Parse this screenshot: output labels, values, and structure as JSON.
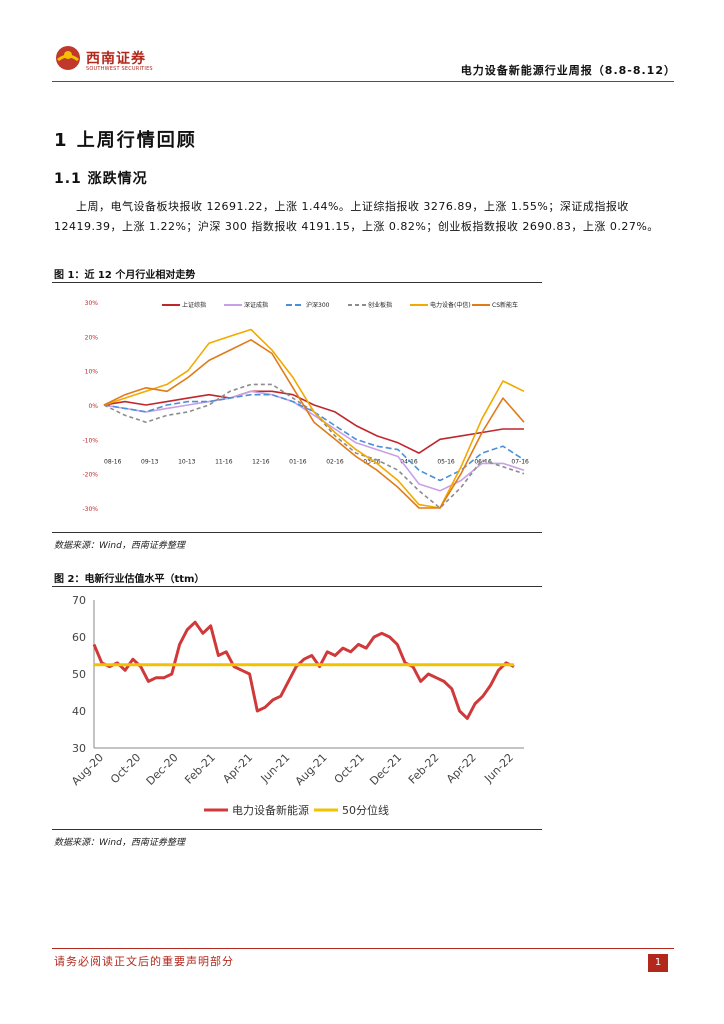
{
  "header": {
    "brand_name": "西南证券",
    "brand_sub": "SOUTHWEST SECURITIES",
    "report_title": "电力设备新能源行业周报（8.8-8.12）"
  },
  "section": {
    "h1": "1 上周行情回顾",
    "h2": "1.1 涨跌情况",
    "paragraph": "上周，电气设备板块报收 12691.22，上涨 1.44%。上证综指报收 3276.89，上涨 1.55%；深证成指报收 12419.39，上涨 1.22%；沪深 300 指数报收 4191.15，上涨 0.82%；创业板指数报收 2690.83，上涨 0.27%。"
  },
  "figure1": {
    "caption": "图 1：近 12 个月行业相对走势",
    "source": "数据来源：Wind，西南证券整理",
    "chart_data": {
      "type": "line",
      "ylim": [
        -30,
        30
      ],
      "yticks": [
        "30%",
        "20%",
        "10%",
        "0%",
        "-10%",
        "-20%",
        "-30%"
      ],
      "xticks": [
        "08-16",
        "09-13",
        "10-13",
        "11-16",
        "12-16",
        "01-16",
        "02-16",
        "03-16",
        "04-16",
        "05-16",
        "06-16",
        "07-16"
      ],
      "series": [
        {
          "name": "上证综指",
          "color": "#c0272d",
          "dash": "",
          "values": [
            0,
            1,
            0,
            1,
            2,
            3,
            2,
            4,
            4,
            3,
            0,
            -2,
            -6,
            -9,
            -11,
            -14,
            -10,
            -9,
            -8,
            -7,
            -7
          ]
        },
        {
          "name": "深证成指",
          "color": "#c9a0e6",
          "dash": "",
          "values": [
            0,
            -1,
            -2,
            -1,
            0,
            1,
            2,
            4,
            3,
            1,
            -3,
            -7,
            -11,
            -13,
            -15,
            -23,
            -25,
            -22,
            -17,
            -17,
            -19
          ]
        },
        {
          "name": "沪深300",
          "color": "#4a90d9",
          "dash": "6,3",
          "values": [
            0,
            -1,
            -2,
            0,
            1,
            1,
            2,
            3,
            3,
            1,
            -2,
            -6,
            -10,
            -12,
            -13,
            -19,
            -22,
            -19,
            -14,
            -12,
            -16
          ]
        },
        {
          "name": "创业板指",
          "color": "#8c8c8c",
          "dash": "4,3",
          "values": [
            0,
            -3,
            -5,
            -3,
            -2,
            0,
            4,
            6,
            6,
            2,
            -2,
            -9,
            -14,
            -16,
            -19,
            -25,
            -30,
            -24,
            -16,
            -18,
            -20
          ]
        },
        {
          "name": "电力设备(中信)",
          "color": "#f2a900",
          "dash": "",
          "values": [
            0,
            2,
            4,
            6,
            10,
            18,
            20,
            22,
            16,
            8,
            -2,
            -8,
            -13,
            -17,
            -22,
            -29,
            -30,
            -18,
            -4,
            7,
            4
          ]
        },
        {
          "name": "CS新能车",
          "color": "#e07b1a",
          "dash": "",
          "values": [
            0,
            3,
            5,
            4,
            8,
            13,
            16,
            19,
            15,
            5,
            -5,
            -10,
            -15,
            -19,
            -24,
            -30,
            -30,
            -20,
            -8,
            2,
            -5
          ]
        }
      ]
    }
  },
  "figure2": {
    "caption": "图 2：电新行业估值水平（ttm）",
    "source": "数据来源：Wind，西南证券整理",
    "chart_data": {
      "type": "line",
      "ylim": [
        30,
        70
      ],
      "yticks": [
        30,
        40,
        50,
        60,
        70
      ],
      "xticks": [
        "Aug-20",
        "Oct-20",
        "Dec-20",
        "Feb-21",
        "Apr-21",
        "Jun-21",
        "Aug-21",
        "Oct-21",
        "Dec-21",
        "Feb-22",
        "Apr-22",
        "Jun-22"
      ],
      "series": [
        {
          "name": "电力设备新能源",
          "color": "#d0393a",
          "values": [
            58,
            53,
            52,
            53,
            51,
            54,
            52,
            48,
            49,
            49,
            50,
            58,
            62,
            64,
            61,
            63,
            55,
            56,
            52,
            51,
            50,
            40,
            41,
            43,
            44,
            48,
            52,
            54,
            55,
            52,
            56,
            55,
            57,
            56,
            58,
            57,
            60,
            61,
            60,
            58,
            53,
            52,
            48,
            50,
            49,
            48,
            46,
            40,
            38,
            42,
            44,
            47,
            51,
            53,
            52
          ]
        },
        {
          "name": "50分位线",
          "color": "#f2c100",
          "values": [
            52.5,
            52.5
          ]
        }
      ]
    }
  },
  "footer": {
    "disclaimer": "请务必阅读正文后的重要声明部分",
    "page_number": "1"
  }
}
